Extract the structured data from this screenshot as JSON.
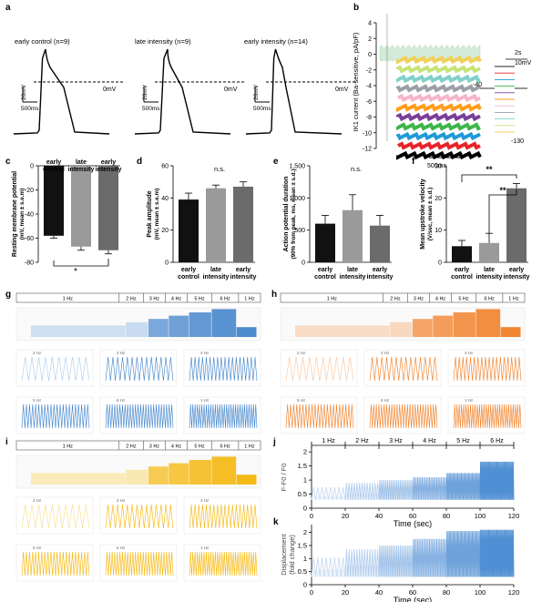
{
  "panel_a": {
    "letter": "a",
    "traces": [
      {
        "title": "early control (n=9)",
        "zero": "0mV",
        "scale_v": "20mV",
        "scale_t": "500ms"
      },
      {
        "title": "late intensity (n=9)",
        "zero": "0mV",
        "scale_v": "20mV",
        "scale_t": "500ms"
      },
      {
        "title": "early intensity (n=14)",
        "zero": "0mV",
        "scale_v": "20mV",
        "scale_t": "500ms"
      }
    ]
  },
  "panel_b": {
    "letter": "b",
    "ylabel": "IK1 current (Ba-sensitive, pA/pF)",
    "yticks": [
      "4",
      "2",
      "0",
      "-2",
      "-4",
      "-6",
      "-8",
      "-10",
      "-12"
    ],
    "scale_t": "500ms",
    "protocol": {
      "time": "2s",
      "top": "10mV",
      "hold": "-40",
      "bottom": "-130"
    },
    "trace_colors": [
      "#000000",
      "#e8232a",
      "#1f9ad6",
      "#3db54a",
      "#7a3f98",
      "#ff9e1b",
      "#f6b5cb",
      "#9aa0a6",
      "#7fd0c9",
      "#c8e37a",
      "#f1d15a"
    ]
  },
  "panel_c": {
    "letter": "c",
    "chart_data": {
      "type": "bar",
      "categories": [
        "early control",
        "late intensity",
        "early intensity"
      ],
      "values": [
        -58,
        -67,
        -70
      ],
      "errors": [
        2,
        3,
        3
      ],
      "ylabel": "Resting membrane potential (mV, mean ± s.e.m)",
      "ylim": [
        -80,
        0
      ],
      "yticks": [
        "0",
        "-20",
        "-40",
        "-60",
        "-80"
      ],
      "significance": "*",
      "colors": [
        "#111111",
        "#9a9a9a",
        "#6b6b6b"
      ]
    }
  },
  "panel_d": {
    "letter": "d",
    "chart_data": {
      "type": "bar",
      "categories": [
        "early control",
        "late intensity",
        "early intensity"
      ],
      "values": [
        39,
        46,
        47
      ],
      "errors": [
        4,
        2,
        3
      ],
      "ylabel": "Peak amplitude (mV, mean ± s.e.m)",
      "ylim": [
        0,
        60
      ],
      "yticks": [
        "0",
        "20",
        "40",
        "60"
      ],
      "significance": "n.s.",
      "colors": [
        "#111111",
        "#9a9a9a",
        "#6b6b6b"
      ]
    }
  },
  "panel_e": {
    "letter": "e",
    "chart_data": {
      "type": "bar",
      "categories": [
        "early control",
        "late intensity",
        "early intensity"
      ],
      "values": [
        600,
        810,
        570
      ],
      "errors": [
        130,
        240,
        160
      ],
      "ylabel": "Action potential duration (90% from peak, ms, mean ± s.d.)",
      "ylim": [
        0,
        1500
      ],
      "yticks": [
        "0",
        "500",
        "1,000",
        "1,500"
      ],
      "significance": "n.s.",
      "colors": [
        "#111111",
        "#9a9a9a",
        "#6b6b6b"
      ]
    }
  },
  "panel_f": {
    "letter": "f",
    "chart_data": {
      "type": "bar",
      "categories": [
        "early control",
        "late intensity",
        "early intensity"
      ],
      "values": [
        5,
        6,
        23
      ],
      "errors": [
        1.8,
        3,
        1.5
      ],
      "ylabel": "Mean upstroke velocity (V/sec, mean ± s.d.)",
      "ylim": [
        0,
        30
      ],
      "yticks": [
        "0",
        "10",
        "20",
        "30"
      ],
      "significance": [
        "**",
        "**"
      ],
      "colors": [
        "#111111",
        "#9a9a9a",
        "#6b6b6b"
      ]
    }
  },
  "panel_g": {
    "letter": "g",
    "freqs": [
      "1 Hz",
      "2 Hz",
      "3 Hz",
      "4 Hz",
      "5 Hz",
      "6 Hz",
      "1 Hz"
    ],
    "sub": [
      "2 Hz",
      "3 Hz",
      "4 Hz",
      "5 Hz",
      "6 Hz",
      "1 Hz"
    ],
    "color": "#3b7fc9",
    "light": "#a9c8ea"
  },
  "panel_h": {
    "letter": "h",
    "freqs": [
      "1 Hz",
      "2 Hz",
      "3 Hz",
      "4 Hz",
      "5 Hz",
      "6 Hz",
      "1 Hz"
    ],
    "sub": [
      "2 Hz",
      "3 Hz",
      "4 Hz",
      "5 Hz",
      "6 Hz",
      "1 Hz"
    ],
    "color": "#f07a1e",
    "light": "#f7c29a"
  },
  "panel_i": {
    "letter": "i",
    "freqs": [
      "1 Hz",
      "2 Hz",
      "3 Hz",
      "4 Hz",
      "5 Hz",
      "6 Hz",
      "1 Hz"
    ],
    "sub": [
      "2 Hz",
      "3 Hz",
      "4 Hz",
      "5 Hz",
      "6 Hz",
      "1 Hz"
    ],
    "color": "#f5b300",
    "light": "#f8dc84"
  },
  "panel_j": {
    "letter": "j",
    "freqs": [
      "1 Hz",
      "2 Hz",
      "3 Hz",
      "4 Hz",
      "5 Hz",
      "6 Hz"
    ],
    "chart_data": {
      "type": "line",
      "ylabel": "F-F0 / F0",
      "xlabel": "Time (sec)",
      "xticks": [
        "0",
        "20",
        "40",
        "60",
        "80",
        "100",
        "120"
      ],
      "yticks": [
        "0",
        "0.5",
        "1",
        "1.5",
        "2"
      ],
      "xlim": [
        0,
        120
      ],
      "ylim": [
        0,
        2.2
      ],
      "segments": [
        {
          "x0": 0,
          "x1": 20,
          "peak": 0.75
        },
        {
          "x0": 20,
          "x1": 40,
          "peak": 0.9
        },
        {
          "x0": 40,
          "x1": 60,
          "peak": 1.0
        },
        {
          "x0": 60,
          "x1": 80,
          "peak": 1.1
        },
        {
          "x0": 80,
          "x1": 100,
          "peak": 1.25
        },
        {
          "x0": 100,
          "x1": 120,
          "peak": 1.65
        }
      ]
    }
  },
  "panel_k": {
    "letter": "k",
    "chart_data": {
      "type": "line",
      "ylabel": "Displacement (fold change)",
      "xlabel": "Time (sec)",
      "xticks": [
        "0",
        "20",
        "40",
        "60",
        "80",
        "100",
        "120"
      ],
      "yticks": [
        "0",
        "0.5",
        "1",
        "1.5",
        "2"
      ],
      "xlim": [
        0,
        120
      ],
      "ylim": [
        0,
        2.3
      ],
      "segments": [
        {
          "x0": 0,
          "x1": 20,
          "peak": 1.05
        },
        {
          "x0": 20,
          "x1": 40,
          "peak": 1.35
        },
        {
          "x0": 40,
          "x1": 60,
          "peak": 1.5
        },
        {
          "x0": 60,
          "x1": 80,
          "peak": 1.75
        },
        {
          "x0": 80,
          "x1": 100,
          "peak": 2.05
        },
        {
          "x0": 100,
          "x1": 120,
          "peak": 2.1
        }
      ]
    }
  }
}
